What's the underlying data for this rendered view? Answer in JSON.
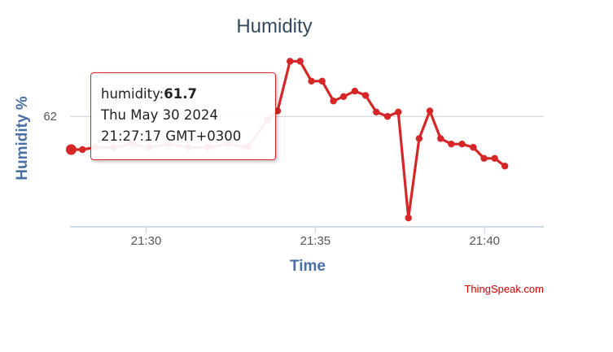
{
  "chart_data": {
    "type": "line",
    "title": "Humidity",
    "xlabel": "Time",
    "ylabel": "Humidity %",
    "x_ticks": [
      {
        "label": "21:30",
        "t": 1770
      },
      {
        "label": "21:35",
        "t": 2070
      },
      {
        "label": "21:40",
        "t": 2370
      }
    ],
    "y_ticks": [
      {
        "label": "62",
        "value": 62
      }
    ],
    "ylim": [
      61.0,
      62.65
    ],
    "xlim_seconds": [
      1635,
      2475
    ],
    "grid": "horizontal",
    "line_color": "#d62728",
    "series": [
      {
        "points": [
          {
            "t": 1637,
            "v": 61.7
          },
          {
            "t": 1657,
            "v": 61.7
          },
          {
            "t": 1680,
            "v": 61.72
          },
          {
            "t": 1712,
            "v": 61.72
          },
          {
            "t": 1745,
            "v": 61.75
          },
          {
            "t": 1775,
            "v": 61.72
          },
          {
            "t": 1810,
            "v": 61.75
          },
          {
            "t": 1845,
            "v": 61.72
          },
          {
            "t": 1880,
            "v": 61.72
          },
          {
            "t": 1915,
            "v": 61.75
          },
          {
            "t": 1950,
            "v": 61.72
          },
          {
            "t": 1985,
            "v": 61.97
          },
          {
            "t": 2003,
            "v": 62.05
          },
          {
            "t": 2025,
            "v": 62.5
          },
          {
            "t": 2043,
            "v": 62.5
          },
          {
            "t": 2063,
            "v": 62.32
          },
          {
            "t": 2082,
            "v": 62.32
          },
          {
            "t": 2102,
            "v": 62.14
          },
          {
            "t": 2120,
            "v": 62.18
          },
          {
            "t": 2140,
            "v": 62.23
          },
          {
            "t": 2159,
            "v": 62.19
          },
          {
            "t": 2178,
            "v": 62.04
          },
          {
            "t": 2198,
            "v": 62.0
          },
          {
            "t": 2217,
            "v": 62.04
          },
          {
            "t": 2235,
            "v": 61.08
          },
          {
            "t": 2254,
            "v": 61.8
          },
          {
            "t": 2273,
            "v": 62.05
          },
          {
            "t": 2292,
            "v": 61.8
          },
          {
            "t": 2311,
            "v": 61.75
          },
          {
            "t": 2330,
            "v": 61.75
          },
          {
            "t": 2350,
            "v": 61.72
          },
          {
            "t": 2369,
            "v": 61.62
          },
          {
            "t": 2388,
            "v": 61.62
          },
          {
            "t": 2406,
            "v": 61.55
          }
        ]
      }
    ],
    "tooltip": {
      "field": "humidity:",
      "value": "61.7",
      "date": "Thu May 30 2024",
      "time": "21:27:17 GMT+0300"
    },
    "credit": "ThingSpeak.com"
  }
}
